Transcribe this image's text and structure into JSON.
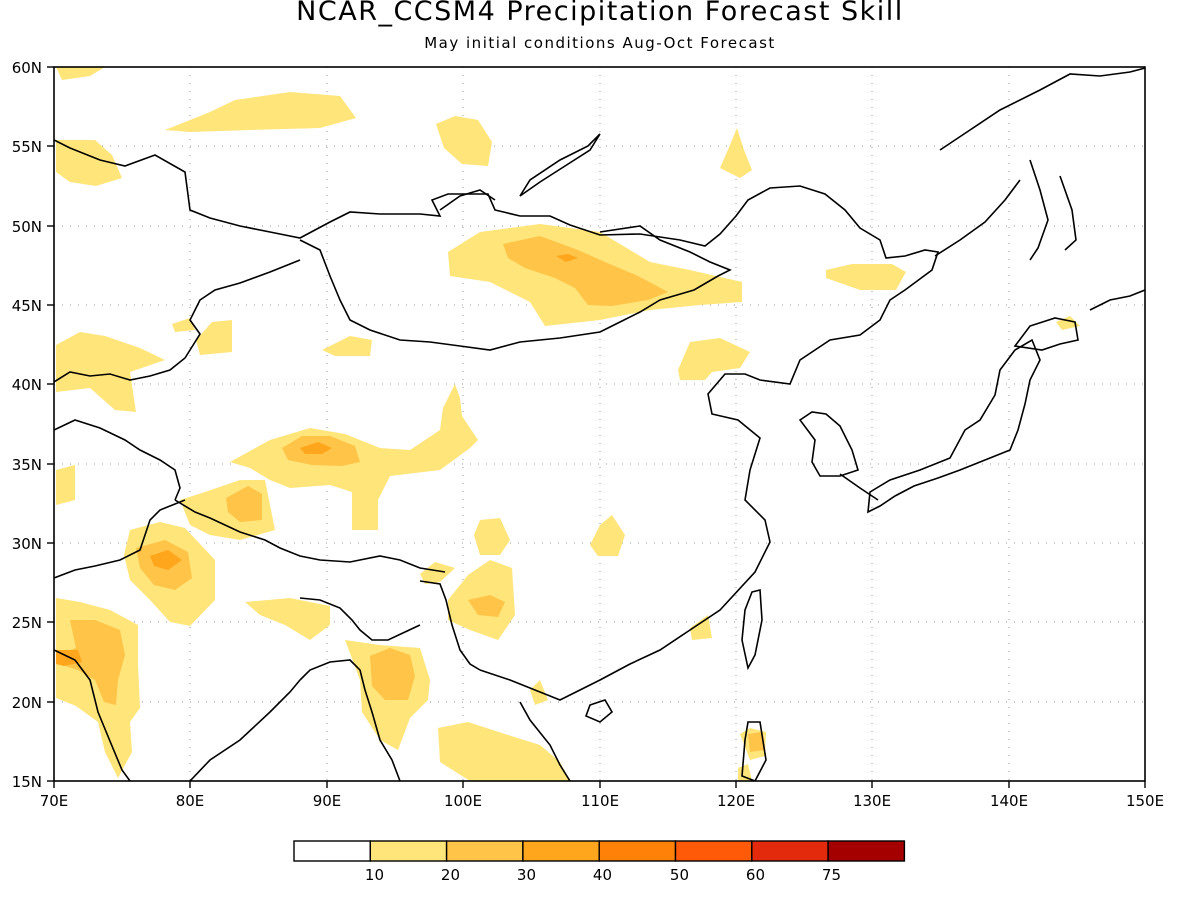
{
  "title": "NCAR_CCSM4 Precipitation Forecast Skill",
  "subtitle": "May initial conditions  Aug-Oct Forecast",
  "lon_ticks": [
    "70E",
    "80E",
    "90E",
    "100E",
    "110E",
    "120E",
    "130E",
    "140E",
    "150E"
  ],
  "lat_ticks": [
    "60N",
    "55N",
    "50N",
    "45N",
    "40N",
    "35N",
    "30N",
    "25N",
    "20N",
    "15N"
  ],
  "colorbar": {
    "labels": [
      "10",
      "20",
      "30",
      "40",
      "50",
      "60",
      "75"
    ],
    "colors": [
      "#ffffff",
      "#ffe57a",
      "#ffc448",
      "#ffa61c",
      "#ff8108",
      "#ff5a08",
      "#e42a0c",
      "#a50000"
    ]
  },
  "map": {
    "lon_range": [
      70,
      150
    ],
    "lat_range": [
      15,
      60
    ],
    "grid": true
  }
}
